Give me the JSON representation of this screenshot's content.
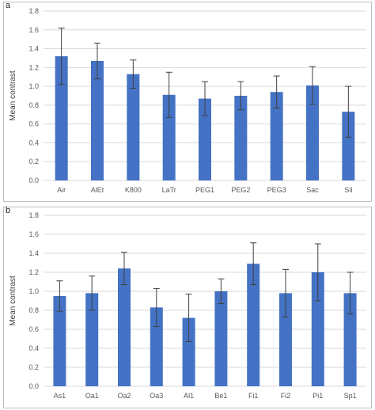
{
  "chart_data": [
    {
      "type": "bar",
      "panel_label": "a",
      "ylabel": "Mean contrast",
      "ylim": [
        0,
        1.8
      ],
      "yticks": [
        "0.0",
        "0.2",
        "0.4",
        "0.6",
        "0.8",
        "1.0",
        "1.2",
        "1.4",
        "1.6",
        "1.8"
      ],
      "grid": true,
      "bar_color": "#4472C4",
      "categories": [
        "Air",
        "AlEt",
        "K800",
        "LaTr",
        "PEG1",
        "PEG2",
        "PEG3",
        "Sac",
        "Sil"
      ],
      "values": [
        1.32,
        1.27,
        1.13,
        0.91,
        0.87,
        0.9,
        0.94,
        1.01,
        0.73
      ],
      "errors": [
        0.3,
        0.19,
        0.15,
        0.24,
        0.18,
        0.15,
        0.17,
        0.2,
        0.27
      ]
    },
    {
      "type": "bar",
      "panel_label": "b",
      "ylabel": "Mean contrast",
      "ylim": [
        0,
        1.8
      ],
      "yticks": [
        "0.0",
        "0.2",
        "0.4",
        "0.6",
        "0.8",
        "1.0",
        "1.2",
        "1.4",
        "1.6",
        "1.8"
      ],
      "grid": true,
      "bar_color": "#4472C4",
      "categories": [
        "As1",
        "Oa1",
        "Oa2",
        "Oa3",
        "Al1",
        "Be1",
        "Fi1",
        "Fi2",
        "Pi1",
        "Sp1"
      ],
      "values": [
        0.95,
        0.98,
        1.24,
        0.83,
        0.72,
        1.0,
        1.29,
        0.98,
        1.2,
        0.98
      ],
      "errors": [
        0.16,
        0.18,
        0.17,
        0.2,
        0.25,
        0.13,
        0.22,
        0.25,
        0.3,
        0.22
      ]
    }
  ]
}
